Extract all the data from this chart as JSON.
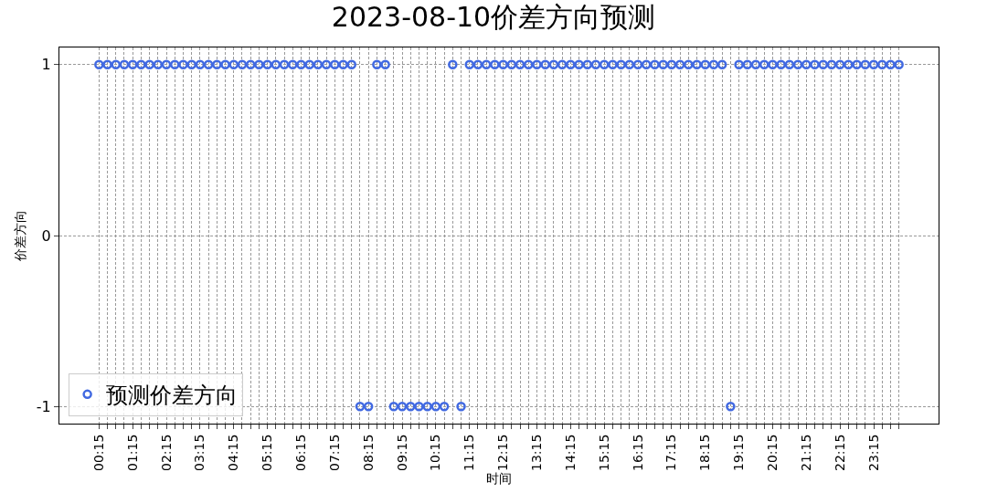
{
  "chart_data": {
    "type": "scatter",
    "title": "2023-08-10价差方向预测",
    "xlabel": "时间",
    "ylabel": "价差方向",
    "categories": [
      "00:15",
      null,
      null,
      null,
      "01:15",
      null,
      null,
      null,
      "02:15",
      null,
      null,
      null,
      "03:15",
      null,
      null,
      null,
      "04:15",
      null,
      null,
      null,
      "05:15",
      null,
      null,
      null,
      "06:15",
      null,
      null,
      null,
      "07:15",
      null,
      null,
      null,
      "08:15",
      null,
      null,
      null,
      "09:15",
      null,
      null,
      null,
      "10:15",
      null,
      null,
      null,
      "11:15",
      null,
      null,
      null,
      "12:15",
      null,
      null,
      null,
      "13:15",
      null,
      null,
      null,
      "14:15",
      null,
      null,
      null,
      "15:15",
      null,
      null,
      null,
      "16:15",
      null,
      null,
      null,
      "17:15",
      null,
      null,
      null,
      "18:15",
      null,
      null,
      null,
      "19:15",
      null,
      null,
      null,
      "20:15",
      null,
      null,
      null,
      "21:15",
      null,
      null,
      null,
      "22:15",
      null,
      null,
      null,
      "23:15",
      null,
      null,
      null
    ],
    "series": [
      {
        "name": "预测价差方向",
        "color": "#4169e1",
        "values": [
          1,
          1,
          1,
          1,
          1,
          1,
          1,
          1,
          1,
          1,
          1,
          1,
          1,
          1,
          1,
          1,
          1,
          1,
          1,
          1,
          1,
          1,
          1,
          1,
          1,
          1,
          1,
          1,
          1,
          1,
          1,
          -1,
          -1,
          1,
          1,
          -1,
          -1,
          -1,
          -1,
          -1,
          -1,
          -1,
          1,
          -1,
          1,
          1,
          1,
          1,
          1,
          1,
          1,
          1,
          1,
          1,
          1,
          1,
          1,
          1,
          1,
          1,
          1,
          1,
          1,
          1,
          1,
          1,
          1,
          1,
          1,
          1,
          1,
          1,
          1,
          1,
          1,
          -1,
          1,
          1,
          1,
          1,
          1,
          1,
          1,
          1,
          1,
          1,
          1,
          1,
          1,
          1,
          1,
          1,
          1,
          1,
          1,
          1
        ]
      }
    ],
    "ylim": [
      -1.1,
      1.1
    ],
    "yticks": [
      -1,
      0,
      1
    ],
    "grid": true,
    "legend": "bottom left",
    "marker": "circle"
  }
}
